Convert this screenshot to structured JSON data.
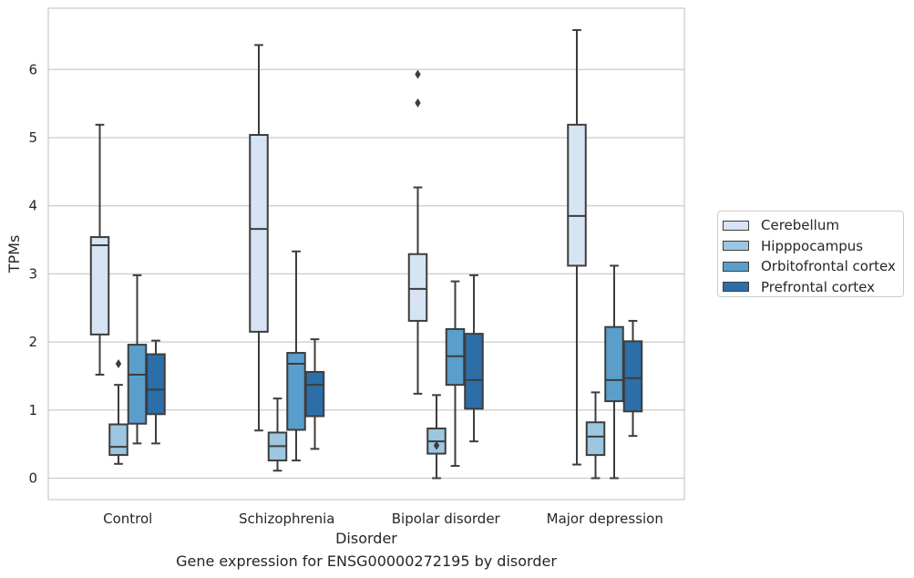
{
  "chart_data": {
    "type": "box",
    "title": "Gene expression for ENSG00000272195 by disorder",
    "xlabel": "Disorder",
    "ylabel": "TPMs",
    "ylim": [
      -0.32,
      6.85
    ],
    "yticks": [
      0,
      1,
      2,
      3,
      4,
      5,
      6
    ],
    "categories": [
      "Control",
      "Schizophrenia",
      "Bipolar disorder",
      "Major depression"
    ],
    "grid": true,
    "legend_position": "right",
    "series": [
      {
        "name": "Cerebellum",
        "color": "#d6e4f3",
        "boxes": [
          {
            "whislo": 1.52,
            "q1": 2.11,
            "med": 3.42,
            "q3": 3.54,
            "whishi": 5.19,
            "fliers": []
          },
          {
            "whislo": 0.7,
            "q1": 2.15,
            "med": 3.66,
            "q3": 5.04,
            "whishi": 6.36,
            "fliers": []
          },
          {
            "whislo": 1.24,
            "q1": 2.31,
            "med": 2.78,
            "q3": 3.29,
            "whishi": 4.27,
            "fliers": [
              5.51,
              5.93
            ]
          },
          {
            "whislo": 0.2,
            "q1": 3.12,
            "med": 3.85,
            "q3": 5.19,
            "whishi": 6.58,
            "fliers": []
          }
        ]
      },
      {
        "name": "Hipppocampus",
        "color": "#9dc6e0",
        "boxes": [
          {
            "whislo": 0.21,
            "q1": 0.34,
            "med": 0.46,
            "q3": 0.79,
            "whishi": 1.37,
            "fliers": [
              1.68
            ]
          },
          {
            "whislo": 0.11,
            "q1": 0.26,
            "med": 0.47,
            "q3": 0.67,
            "whishi": 1.17,
            "fliers": []
          },
          {
            "whislo": 0.0,
            "q1": 0.36,
            "med": 0.54,
            "q3": 0.73,
            "whishi": 1.22,
            "fliers": [
              0.48
            ]
          },
          {
            "whislo": 0.0,
            "q1": 0.34,
            "med": 0.61,
            "q3": 0.82,
            "whishi": 1.26,
            "fliers": []
          }
        ]
      },
      {
        "name": "Orbitofrontal cortex",
        "color": "#5a9ecb",
        "boxes": [
          {
            "whislo": 0.51,
            "q1": 0.8,
            "med": 1.52,
            "q3": 1.96,
            "whishi": 2.98,
            "fliers": []
          },
          {
            "whislo": 0.26,
            "q1": 0.71,
            "med": 1.68,
            "q3": 1.84,
            "whishi": 3.33,
            "fliers": []
          },
          {
            "whislo": 0.18,
            "q1": 1.37,
            "med": 1.79,
            "q3": 2.19,
            "whishi": 2.89,
            "fliers": []
          },
          {
            "whislo": 0.0,
            "q1": 1.13,
            "med": 1.44,
            "q3": 2.22,
            "whishi": 3.12,
            "fliers": []
          }
        ]
      },
      {
        "name": "Prefrontal cortex",
        "color": "#2c6ea8",
        "boxes": [
          {
            "whislo": 0.51,
            "q1": 0.94,
            "med": 1.3,
            "q3": 1.82,
            "whishi": 2.02,
            "fliers": []
          },
          {
            "whislo": 0.43,
            "q1": 0.91,
            "med": 1.37,
            "q3": 1.56,
            "whishi": 2.04,
            "fliers": []
          },
          {
            "whislo": 0.54,
            "q1": 1.02,
            "med": 1.44,
            "q3": 2.12,
            "whishi": 2.98,
            "fliers": []
          },
          {
            "whislo": 0.62,
            "q1": 0.98,
            "med": 1.47,
            "q3": 2.01,
            "whishi": 2.31,
            "fliers": []
          }
        ]
      }
    ]
  }
}
